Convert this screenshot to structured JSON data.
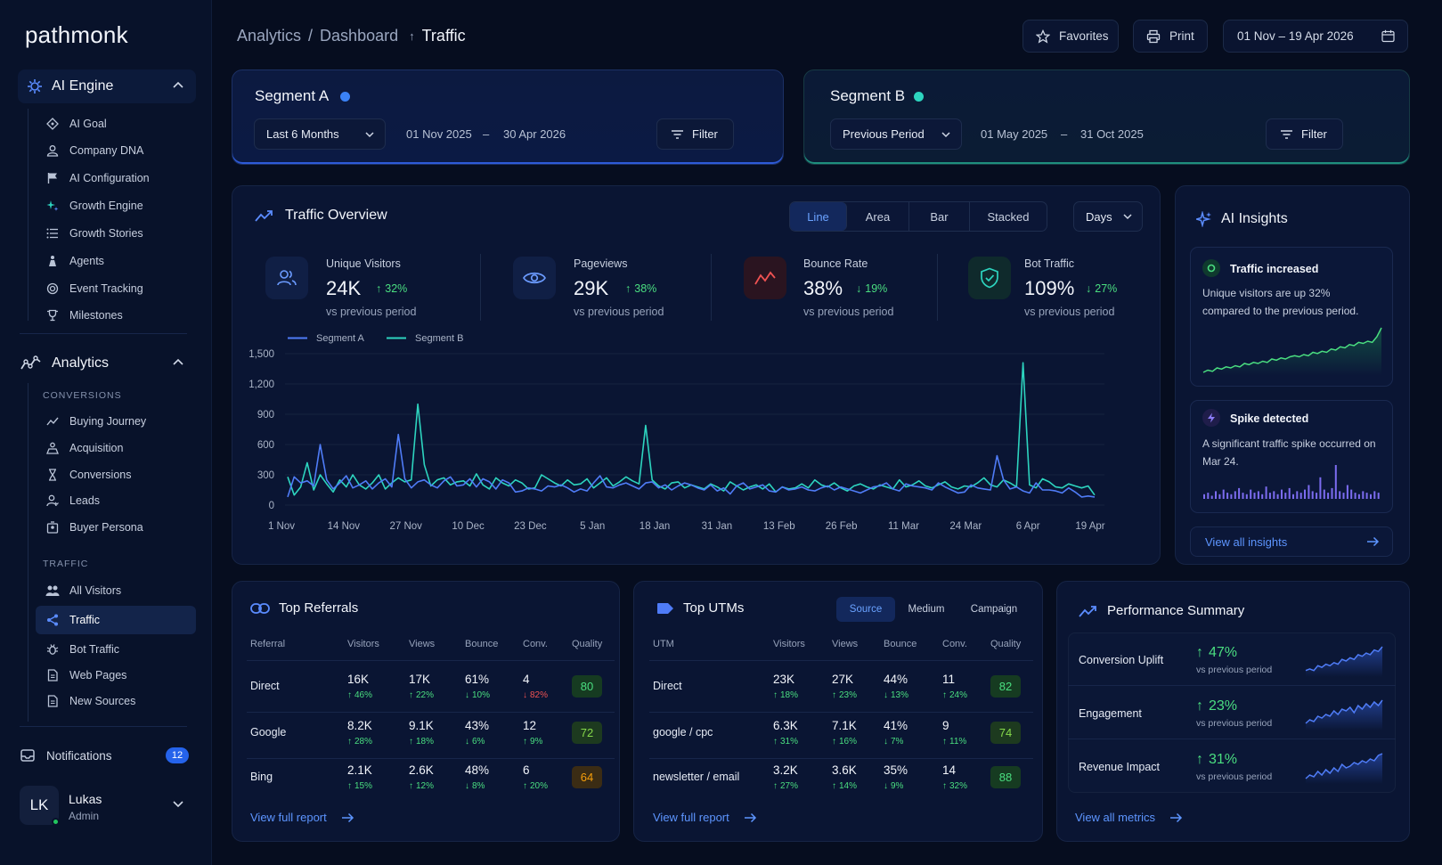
{
  "app": {
    "logo": "pathmonk"
  },
  "sidebar": {
    "ai_engine": {
      "label": "AI Engine",
      "items": [
        {
          "label": "AI Goal",
          "icon": "target-icon"
        },
        {
          "label": "Company DNA",
          "icon": "user-icon"
        },
        {
          "label": "AI Configuration",
          "icon": "flag-icon"
        },
        {
          "label": "Growth Engine",
          "icon": "sparkle-icon"
        },
        {
          "label": "Growth Stories",
          "icon": "list-icon"
        },
        {
          "label": "Agents",
          "icon": "agent-icon"
        },
        {
          "label": "Event Tracking",
          "icon": "radar-icon"
        },
        {
          "label": "Milestones",
          "icon": "trophy-icon"
        }
      ]
    },
    "analytics": {
      "label": "Analytics",
      "conversions_label": "CONVERSIONS",
      "conversions": [
        {
          "label": "Buying Journey",
          "icon": "trend-icon"
        },
        {
          "label": "Acquisition",
          "icon": "funnel-icon"
        },
        {
          "label": "Conversions",
          "icon": "hourglass-icon"
        },
        {
          "label": "Leads",
          "icon": "person-icon"
        },
        {
          "label": "Buyer Persona",
          "icon": "persona-icon"
        }
      ],
      "traffic_label": "TRAFFIC",
      "traffic": [
        {
          "label": "All Visitors",
          "icon": "users-icon"
        },
        {
          "label": "Traffic",
          "icon": "share-icon"
        },
        {
          "label": "Bot Traffic",
          "icon": "bug-icon"
        },
        {
          "label": "Web Pages",
          "icon": "page-icon"
        },
        {
          "label": "New Sources",
          "icon": "page-icon"
        }
      ]
    },
    "notifications": {
      "label": "Notifications",
      "count": "12"
    },
    "user": {
      "initials": "LK",
      "name": "Lukas",
      "role": "Admin"
    }
  },
  "breadcrumb": {
    "a": "Analytics",
    "sep": "/",
    "b": "Dashboard",
    "current": "Traffic"
  },
  "topbar": {
    "favorites": "Favorites",
    "print": "Print",
    "date_range": "01 Nov – 19 Apr 2026"
  },
  "segment_a": {
    "title": "Segment A",
    "period": "Last 6 Months",
    "start": "01 Nov 2025",
    "dash": "–",
    "end": "30 Apr 2026",
    "filter": "Filter",
    "color": "#3b82f6"
  },
  "segment_b": {
    "title": "Segment B",
    "period": "Previous Period",
    "start": "01 May 2025",
    "dash": "–",
    "end": "31 Oct 2025",
    "filter": "Filter",
    "color": "#2dd4bf"
  },
  "overview": {
    "title": "Traffic Overview",
    "tabs": [
      "Line",
      "Area",
      "Bar",
      "Stacked"
    ],
    "granularity": "Days",
    "kpis": [
      {
        "label": "Unique Visitors",
        "value": "24K",
        "delta": "32%",
        "dir": "up",
        "sub": "vs previous period"
      },
      {
        "label": "Pageviews",
        "value": "29K",
        "delta": "38%",
        "dir": "up",
        "sub": "vs previous period"
      },
      {
        "label": "Bounce Rate",
        "value": "38%",
        "delta": "19%",
        "dir": "down",
        "sub": "vs previous period"
      },
      {
        "label": "Bot Traffic",
        "value": "109%",
        "delta": "27%",
        "dir": "down",
        "sub": "vs previous period"
      }
    ]
  },
  "chart_data": {
    "type": "line",
    "legend": "top-left",
    "grid": true,
    "ylim": [
      0,
      1500
    ],
    "yticks": [
      "1,500",
      "1,200",
      "900",
      "600",
      "300",
      "0"
    ],
    "xticks": [
      "1 Nov",
      "14 Nov",
      "27 Nov",
      "10 Dec",
      "23 Dec",
      "5 Jan",
      "18 Jan",
      "31 Jan",
      "13 Feb",
      "26 Feb",
      "11 Mar",
      "24 Mar",
      "6 Apr",
      "19 Apr"
    ],
    "series": [
      {
        "name": "Segment A",
        "color": "#4f7cf7",
        "values": [
          80,
          280,
          220,
          240,
          190,
          600,
          250,
          160,
          220,
          290,
          170,
          200,
          240,
          160,
          220,
          260,
          180,
          700,
          260,
          170,
          230,
          250,
          200,
          170,
          240,
          280,
          190,
          200,
          260,
          180,
          260,
          230,
          160,
          250,
          220,
          130,
          140,
          170,
          160,
          140,
          190,
          180,
          200,
          170,
          130,
          160,
          140,
          220,
          290,
          180,
          170,
          200,
          220,
          190,
          160,
          220,
          230,
          170,
          200,
          150,
          190,
          220,
          200,
          170,
          150,
          200,
          140,
          170,
          110,
          190,
          220,
          160,
          180,
          200,
          140,
          130,
          180,
          150,
          160,
          180,
          150,
          140,
          170,
          190,
          150,
          180,
          160,
          140,
          120,
          150,
          180,
          190,
          220,
          160,
          140,
          210,
          190,
          180,
          170,
          150,
          220,
          180,
          150,
          120,
          130,
          200,
          170,
          160,
          150,
          490,
          250,
          160,
          180,
          140,
          120,
          220,
          150,
          150,
          140,
          120,
          170,
          130,
          80,
          90,
          80
        ]
      },
      {
        "name": "Segment B",
        "color": "#2dd4bf",
        "values": [
          280,
          100,
          180,
          420,
          150,
          300,
          210,
          130,
          250,
          180,
          300,
          200,
          160,
          220,
          300,
          160,
          220,
          270,
          230,
          250,
          1000,
          400,
          190,
          250,
          270,
          200,
          230,
          240,
          190,
          310,
          200,
          160,
          270,
          220,
          190,
          250,
          220,
          160,
          170,
          300,
          260,
          220,
          190,
          250,
          200,
          210,
          260,
          170,
          220,
          270,
          190,
          230,
          280,
          240,
          210,
          790,
          250,
          190,
          160,
          220,
          230,
          170,
          200,
          180,
          160,
          210,
          180,
          140,
          230,
          190,
          150,
          180,
          200,
          160,
          210,
          130,
          180,
          160,
          170,
          210,
          170,
          250,
          200,
          180,
          220,
          170,
          140,
          190,
          210,
          180,
          160,
          200,
          180,
          160,
          250,
          180,
          200,
          240,
          190,
          170,
          200,
          230,
          180,
          160,
          190,
          180,
          220,
          270,
          200,
          180,
          250,
          220,
          180,
          1410,
          200,
          170,
          260,
          230,
          180,
          170,
          210,
          190,
          170,
          190,
          100
        ]
      }
    ]
  },
  "insights": {
    "title": "AI Insights",
    "cards": [
      {
        "title": "Traffic increased",
        "text": "Unique visitors are up 32% compared to the previous period."
      },
      {
        "title": "Spike detected",
        "text": "A significant traffic spike occurred on Mar 24."
      }
    ],
    "spark_up": [
      10,
      12,
      11,
      14,
      13,
      15,
      14,
      16,
      15,
      18,
      17,
      19,
      18,
      20,
      19,
      22,
      21,
      23,
      22,
      24,
      25,
      24,
      26,
      25,
      28,
      27,
      29,
      28,
      31,
      30,
      33,
      32,
      35,
      34,
      37,
      36,
      38,
      37,
      42,
      50
    ],
    "spike_bars": [
      3,
      4,
      2,
      5,
      3,
      6,
      4,
      3,
      5,
      7,
      4,
      3,
      6,
      4,
      5,
      3,
      8,
      4,
      5,
      3,
      6,
      4,
      7,
      3,
      5,
      4,
      6,
      9,
      5,
      4,
      14,
      6,
      4,
      7,
      22,
      5,
      4,
      9,
      6,
      4,
      3,
      5,
      4,
      3,
      5,
      4
    ],
    "view_all": "View all insights"
  },
  "referrals": {
    "title": "Top Referrals",
    "headers": [
      "Referral",
      "Visitors",
      "Views",
      "Bounce",
      "Conv.",
      "Quality"
    ],
    "rows": [
      {
        "name": "Direct",
        "visitors": "16K",
        "vd": "46%",
        "views": "17K",
        "wd": "22%",
        "bounce": "61%",
        "bd": "10%",
        "conv": "4",
        "cd": "82%",
        "quality": "80"
      },
      {
        "name": "Google",
        "visitors": "8.2K",
        "vd": "28%",
        "views": "9.1K",
        "wd": "18%",
        "bounce": "43%",
        "bd": "6%",
        "conv": "12",
        "cd": "9%",
        "quality": "72"
      },
      {
        "name": "Bing",
        "visitors": "2.1K",
        "vd": "15%",
        "views": "2.6K",
        "wd": "12%",
        "bounce": "48%",
        "bd": "8%",
        "conv": "6",
        "cd": "20%",
        "quality": "64"
      }
    ],
    "link": "View full report"
  },
  "utms": {
    "title": "Top UTMs",
    "tabs": [
      "Source",
      "Medium",
      "Campaign"
    ],
    "headers": [
      "UTM",
      "Visitors",
      "Views",
      "Bounce",
      "Conv.",
      "Quality"
    ],
    "rows": [
      {
        "name": "Direct",
        "visitors": "23K",
        "vd": "18%",
        "views": "27K",
        "wd": "23%",
        "bounce": "44%",
        "bd": "13%",
        "conv": "11",
        "cd": "24%",
        "quality": "82"
      },
      {
        "name": "google / cpc",
        "visitors": "6.3K",
        "vd": "31%",
        "views": "7.1K",
        "wd": "16%",
        "bounce": "41%",
        "bd": "7%",
        "conv": "9",
        "cd": "11%",
        "quality": "74"
      },
      {
        "name": "newsletter / email",
        "visitors": "3.2K",
        "vd": "27%",
        "views": "3.6K",
        "wd": "14%",
        "bounce": "35%",
        "bd": "9%",
        "conv": "14",
        "cd": "32%",
        "quality": "88"
      }
    ],
    "link": "View full report"
  },
  "performance": {
    "title": "Performance Summary",
    "rows": [
      {
        "label": "Conversion Uplift",
        "value": "47%",
        "sub": "vs previous period"
      },
      {
        "label": "Engagement",
        "value": "23%",
        "sub": "vs previous period"
      },
      {
        "label": "Revenue Impact",
        "value": "31%",
        "sub": "vs previous period"
      }
    ],
    "link": "View all metrics"
  }
}
